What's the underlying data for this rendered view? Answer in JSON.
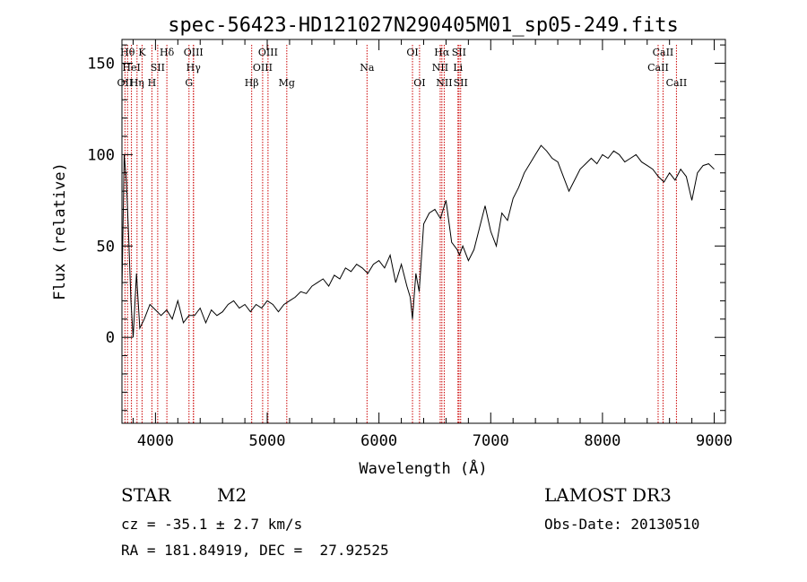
{
  "chart_data": {
    "type": "line",
    "title": "spec-56423-HD121027N290405M01_sp05-249.fits",
    "xlabel": "Wavelength (Å)",
    "ylabel": "Flux (relative)",
    "xlim": [
      3700,
      9100
    ],
    "ylim": [
      -47,
      163
    ],
    "xticks": [
      {
        "value": 4000,
        "label": "4000"
      },
      {
        "value": 5000,
        "label": "5000"
      },
      {
        "value": 6000,
        "label": "6000"
      },
      {
        "value": 7000,
        "label": "7000"
      },
      {
        "value": 8000,
        "label": "8000"
      },
      {
        "value": 9000,
        "label": "9000"
      }
    ],
    "yticks": [
      {
        "value": 0,
        "label": "0"
      },
      {
        "value": 50,
        "label": "50"
      },
      {
        "value": 100,
        "label": "100"
      },
      {
        "value": 150,
        "label": "150"
      }
    ],
    "series": [
      {
        "values_x": [
          3700,
          3720,
          3740,
          3760,
          3780,
          3800,
          3830,
          3860,
          3900,
          3950,
          4000,
          4050,
          4100,
          4150,
          4200,
          4250,
          4300,
          4350,
          4400,
          4450,
          4500,
          4550,
          4600,
          4650,
          4700,
          4750,
          4800,
          4850,
          4900,
          4950,
          5000,
          5050,
          5100,
          5150,
          5200,
          5250,
          5300,
          5350,
          5400,
          5450,
          5500,
          5550,
          5600,
          5650,
          5700,
          5750,
          5800,
          5850,
          5900,
          5950,
          6000,
          6050,
          6100,
          6150,
          6200,
          6250,
          6280,
          6300,
          6330,
          6360,
          6400,
          6450,
          6500,
          6550,
          6600,
          6650,
          6700,
          6720,
          6750,
          6800,
          6850,
          6900,
          6950,
          7000,
          7050,
          7100,
          7150,
          7200,
          7250,
          7300,
          7350,
          7400,
          7450,
          7500,
          7550,
          7600,
          7650,
          7700,
          7750,
          7800,
          7850,
          7900,
          7950,
          8000,
          8050,
          8100,
          8150,
          8200,
          8250,
          8300,
          8350,
          8400,
          8450,
          8500,
          8550,
          8600,
          8650,
          8700,
          8750,
          8800,
          8850,
          8900,
          8950,
          9000
        ],
        "values_y": [
          25,
          100,
          85,
          55,
          20,
          0,
          35,
          5,
          10,
          18,
          15,
          12,
          15,
          10,
          20,
          8,
          12,
          12,
          16,
          8,
          15,
          12,
          14,
          18,
          20,
          16,
          18,
          14,
          18,
          16,
          20,
          18,
          14,
          18,
          20,
          22,
          25,
          24,
          28,
          30,
          32,
          28,
          34,
          32,
          38,
          36,
          40,
          38,
          35,
          40,
          42,
          38,
          45,
          30,
          40,
          28,
          22,
          10,
          35,
          25,
          62,
          68,
          70,
          65,
          75,
          52,
          48,
          45,
          50,
          42,
          48,
          60,
          72,
          58,
          50,
          68,
          64,
          76,
          82,
          90,
          95,
          100,
          105,
          102,
          98,
          96,
          88,
          80,
          86,
          92,
          95,
          98,
          95,
          100,
          98,
          102,
          100,
          96,
          98,
          100,
          96,
          94,
          92,
          88,
          85,
          90,
          86,
          92,
          88,
          75,
          90,
          94,
          95,
          92
        ]
      }
    ],
    "spectral_lines": [
      {
        "label": "OII",
        "x": 3727,
        "row": 2
      },
      {
        "label": "Hθ",
        "x": 3750,
        "row": 0
      },
      {
        "label": "HeI",
        "x": 3785,
        "row": 1
      },
      {
        "label": "Hη",
        "x": 3835,
        "row": 2
      },
      {
        "label": "K",
        "x": 3880,
        "row": 0
      },
      {
        "label": "H",
        "x": 3968,
        "row": 2
      },
      {
        "label": "SII",
        "x": 4020,
        "row": 1
      },
      {
        "label": "Hδ",
        "x": 4102,
        "row": 0
      },
      {
        "label": "OIII",
        "x": 4340,
        "row": 0
      },
      {
        "label": "Hγ",
        "x": 4340,
        "row": 1
      },
      {
        "label": "G",
        "x": 4300,
        "row": 2
      },
      {
        "label": "Hβ",
        "x": 4861,
        "row": 2
      },
      {
        "label": "OIII",
        "x": 5007,
        "row": 0
      },
      {
        "label": "OIII",
        "x": 4959,
        "row": 1
      },
      {
        "label": "Mg",
        "x": 5175,
        "row": 2
      },
      {
        "label": "Na",
        "x": 5893,
        "row": 1
      },
      {
        "label": "OI",
        "x": 6300,
        "row": 0
      },
      {
        "label": "OI",
        "x": 6363,
        "row": 2
      },
      {
        "label": "Hα",
        "x": 6563,
        "row": 0
      },
      {
        "label": "NII",
        "x": 6548,
        "row": 1
      },
      {
        "label": "NII",
        "x": 6584,
        "row": 2
      },
      {
        "label": "Li",
        "x": 6707,
        "row": 1
      },
      {
        "label": "SII",
        "x": 6716,
        "row": 0
      },
      {
        "label": "SII",
        "x": 6731,
        "row": 2
      },
      {
        "label": "CaII",
        "x": 8542,
        "row": 0
      },
      {
        "label": "CaII",
        "x": 8498,
        "row": 1
      },
      {
        "label": "CaII",
        "x": 8662,
        "row": 2
      }
    ],
    "grid": false,
    "legend": "none"
  },
  "info": {
    "class_label": "STAR",
    "subclass": "M2",
    "survey": "LAMOST DR3",
    "cz": "cz = -35.1 ± 2.7 km/s",
    "obs_date": "Obs-Date: 20130510",
    "coords": "RA = 181.84919, DEC =  27.92525"
  },
  "colors": {
    "spectrum": "#000000",
    "line_markers": "#cc0000"
  }
}
